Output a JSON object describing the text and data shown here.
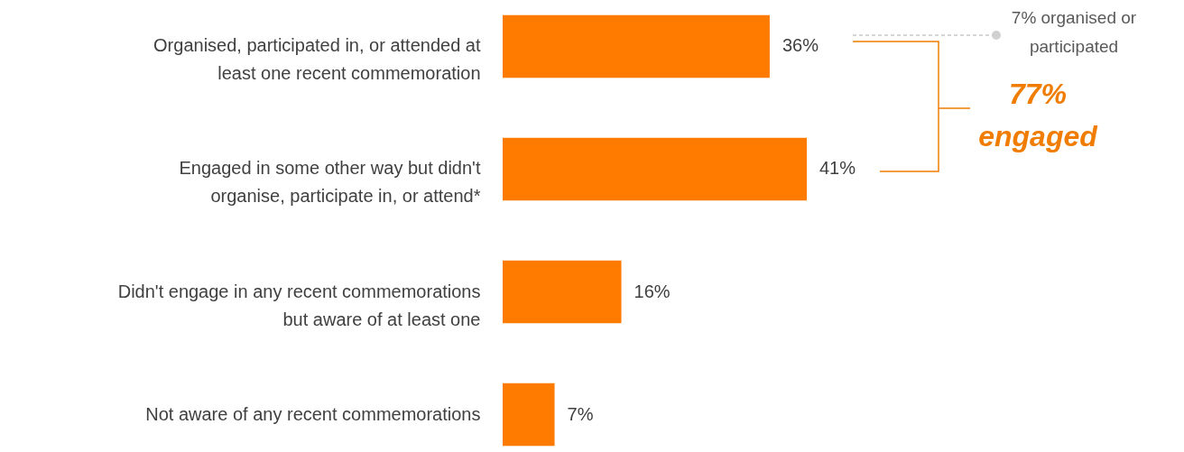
{
  "chart_data": {
    "type": "bar",
    "orientation": "horizontal",
    "categories": [
      "Organised, participated in, or attended at least one recent commemoration",
      "Engaged in some other way but didn't organise, participate in, or attend*",
      "Didn't engage in any recent commemorations but aware of at least one",
      "Not aware of any recent commemorations"
    ],
    "values": [
      36,
      41,
      16,
      7
    ],
    "value_labels": [
      "36%",
      "41%",
      "16%",
      "7%"
    ],
    "color": "#ff7b00",
    "annotations": [
      "7% organised or participated",
      "77% engaged"
    ]
  }
}
